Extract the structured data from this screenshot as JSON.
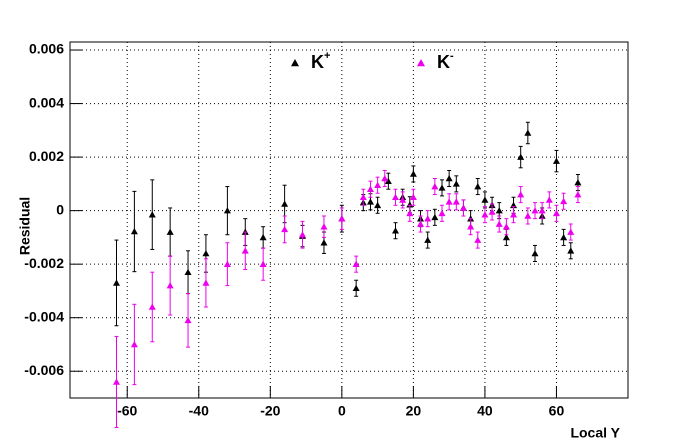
{
  "chart_data": {
    "type": "scatter",
    "x_label": "Local Y",
    "y_label": "Residual",
    "xlim": [
      -76,
      80
    ],
    "ylim": [
      -0.007,
      0.0063
    ],
    "xticks": [
      -60,
      -40,
      -20,
      0,
      20,
      40,
      60
    ],
    "yticks": [
      -0.006,
      -0.004,
      -0.002,
      0,
      0.002,
      0.004,
      0.006
    ],
    "grid": true,
    "series": [
      {
        "name": "K+",
        "color": "#000000",
        "x": [
          -63,
          -58,
          -53,
          -48,
          -43,
          -38,
          -32,
          -27,
          -22,
          -16,
          -11,
          -5,
          0,
          4,
          6,
          8,
          10,
          13,
          15,
          17,
          19,
          20,
          22,
          24,
          26,
          28,
          30,
          32,
          34,
          36,
          38,
          40,
          42,
          44,
          46,
          48,
          50,
          52,
          54,
          56,
          60,
          62,
          64,
          66
        ],
        "values": [
          -0.0027,
          -0.00078,
          -0.00015,
          -0.0008,
          -0.0023,
          -0.0016,
          0,
          -0.0008,
          -0.001,
          0.00025,
          -0.00095,
          -0.0012,
          -0.0003,
          -0.0029,
          0.0003,
          0.00033,
          0.0002,
          0.0011,
          -0.00075,
          0.0005,
          0.00022,
          0.00137,
          -0.0003,
          -0.0011,
          -0.00025,
          0.00085,
          0.0012,
          0.001,
          0.0001,
          -0.0003,
          0.0009,
          0.0004,
          0.0002,
          0,
          -0.001,
          0.0002,
          0.002,
          0.0029,
          -0.0016,
          -0.0002,
          0.00185,
          -0.001,
          -0.0015,
          0.00105
        ],
        "errors": [
          0.0016,
          0.0015,
          0.0013,
          0.0009,
          0.0008,
          0.0007,
          0.0009,
          0.0005,
          0.0004,
          0.0007,
          0.0004,
          0.0004,
          0.0005,
          0.0003,
          0.0003,
          0.0003,
          0.0003,
          0.0003,
          0.0003,
          0.0003,
          0.0003,
          0.0003,
          0.0003,
          0.0003,
          0.0003,
          0.0003,
          0.0003,
          0.0003,
          0.0003,
          0.0003,
          0.0003,
          0.0003,
          0.0003,
          0.0003,
          0.0003,
          0.0003,
          0.0004,
          0.0004,
          0.0003,
          0.0003,
          0.0004,
          0.0003,
          0.0003,
          0.0003
        ]
      },
      {
        "name": "K-",
        "color": "#ee00ee",
        "x": [
          -63,
          -58,
          -53,
          -48,
          -43,
          -38,
          -32,
          -27,
          -22,
          -16,
          -11,
          -5,
          0,
          4,
          6,
          8,
          10,
          12,
          15,
          17,
          19,
          20,
          22,
          24,
          26,
          28,
          30,
          32,
          34,
          36,
          38,
          40,
          42,
          44,
          46,
          48,
          50,
          52,
          54,
          56,
          58,
          60,
          62,
          64,
          66
        ],
        "values": [
          -0.0064,
          -0.005,
          -0.0036,
          -0.0028,
          -0.0041,
          -0.0027,
          -0.002,
          -0.0015,
          -0.002,
          -0.0007,
          -0.0009,
          -0.0006,
          -0.0003,
          -0.002,
          0.0005,
          0.0008,
          0.00095,
          0.0012,
          0.0005,
          0.0004,
          -0.0001,
          0.0005,
          -0.0005,
          -0.0003,
          0.0009,
          -0.0001,
          0.00033,
          0.00033,
          0.0001,
          -0.0006,
          -0.0011,
          -0.00015,
          -5e-05,
          -0.0005,
          -0.0006,
          -0.00015,
          0.0006,
          -0.0002,
          0,
          0,
          0.0004,
          -0.0001,
          0.00035,
          -0.0008,
          0.0006
        ],
        "errors": [
          0.0017,
          0.0015,
          0.0013,
          0.0011,
          0.001,
          0.0009,
          0.0008,
          0.0007,
          0.0006,
          0.0005,
          0.0005,
          0.0004,
          0.0004,
          0.0003,
          0.0003,
          0.0003,
          0.0003,
          0.0003,
          0.0003,
          0.0003,
          0.0003,
          0.0003,
          0.0003,
          0.0003,
          0.0003,
          0.0003,
          0.0003,
          0.0003,
          0.0003,
          0.0003,
          0.0003,
          0.0003,
          0.0003,
          0.0003,
          0.0003,
          0.0003,
          0.0003,
          0.0003,
          0.0003,
          0.0003,
          0.0003,
          0.0003,
          0.0003,
          0.0003,
          0.0003
        ]
      }
    ]
  }
}
